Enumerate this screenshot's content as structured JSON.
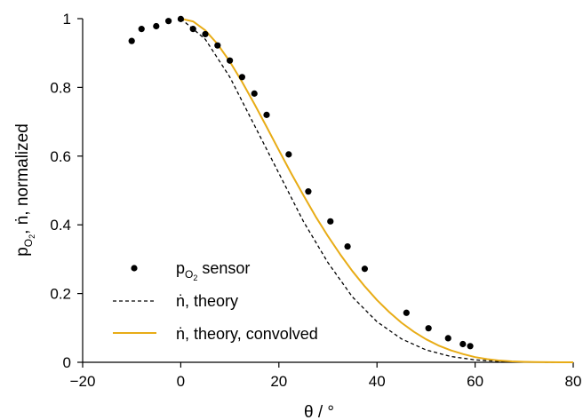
{
  "chart_data": {
    "type": "scatter",
    "title": "",
    "xlabel": "θ / °",
    "ylabel": "p_O2, ṅ, normalized",
    "xlim": [
      -20,
      80
    ],
    "ylim": [
      0,
      1.0
    ],
    "xticks": [
      -20,
      0,
      20,
      40,
      60,
      80
    ],
    "yticks": [
      0,
      0.2,
      0.4,
      0.6,
      0.8,
      1.0
    ],
    "xtick_labels": [
      "−20",
      "0",
      "20",
      "40",
      "60",
      "80"
    ],
    "ytick_labels": [
      "0",
      "0.2",
      "0.4",
      "0.6",
      "0.8",
      "1"
    ],
    "grid": false,
    "legend_position": "bottom-left",
    "series": [
      {
        "name": "pO2 sensor",
        "kind": "scatter",
        "color": "#000000",
        "x": [
          -10,
          -8,
          -5,
          -2.5,
          0,
          2.5,
          5,
          7.5,
          10,
          12.5,
          15,
          17.5,
          22,
          26,
          30.5,
          34,
          37.5,
          46,
          50.5,
          54.5,
          57.5,
          59
        ],
        "y": [
          0.935,
          0.97,
          0.978,
          0.993,
          0.999,
          0.97,
          0.955,
          0.922,
          0.878,
          0.83,
          0.782,
          0.72,
          0.605,
          0.497,
          0.41,
          0.337,
          0.272,
          0.144,
          0.099,
          0.07,
          0.053,
          0.047
        ]
      },
      {
        "name": "ṅ, theory",
        "kind": "line",
        "style": "dashed",
        "color": "#000000",
        "x": [
          0,
          5,
          10,
          15,
          20,
          25,
          30,
          35,
          40,
          45,
          50,
          55,
          60,
          65,
          70,
          75,
          80
        ],
        "y": [
          1.0,
          0.94,
          0.83,
          0.69,
          0.55,
          0.41,
          0.29,
          0.19,
          0.118,
          0.068,
          0.036,
          0.017,
          0.007,
          0.0025,
          0.0006,
          0.0001,
          0.0
        ]
      },
      {
        "name": "ṅ, theory, convolved",
        "kind": "line",
        "style": "solid",
        "color": "#E8AC16",
        "x": [
          0,
          2.5,
          5,
          7.5,
          10,
          12.5,
          15,
          17.5,
          20,
          22.5,
          25,
          27.5,
          30,
          32.5,
          35,
          37.5,
          40,
          42.5,
          45,
          47.5,
          50,
          52.5,
          55,
          57.5,
          60,
          62.5,
          65,
          67.5,
          70,
          72.5,
          75,
          77.5,
          80
        ],
        "y": [
          1.0,
          0.992,
          0.966,
          0.926,
          0.875,
          0.816,
          0.752,
          0.685,
          0.617,
          0.55,
          0.486,
          0.424,
          0.367,
          0.314,
          0.265,
          0.221,
          0.181,
          0.146,
          0.115,
          0.089,
          0.067,
          0.049,
          0.035,
          0.024,
          0.015,
          0.009,
          0.005,
          0.0027,
          0.0013,
          0.0006,
          0.0002,
          0.0001,
          0.0
        ]
      }
    ]
  },
  "legend": {
    "items": [
      {
        "label_main": "p",
        "label_sub1": "O",
        "label_sub2": "2",
        "label_rest": " sensor"
      },
      {
        "label": "ṅ, theory"
      },
      {
        "label": "ṅ, theory, convolved"
      }
    ]
  },
  "ylabel_parts": {
    "main": "p",
    "sub1": "O",
    "sub2": "2",
    "rest": ",  ṅ,  normalized"
  },
  "xlabel_text": "θ / °"
}
